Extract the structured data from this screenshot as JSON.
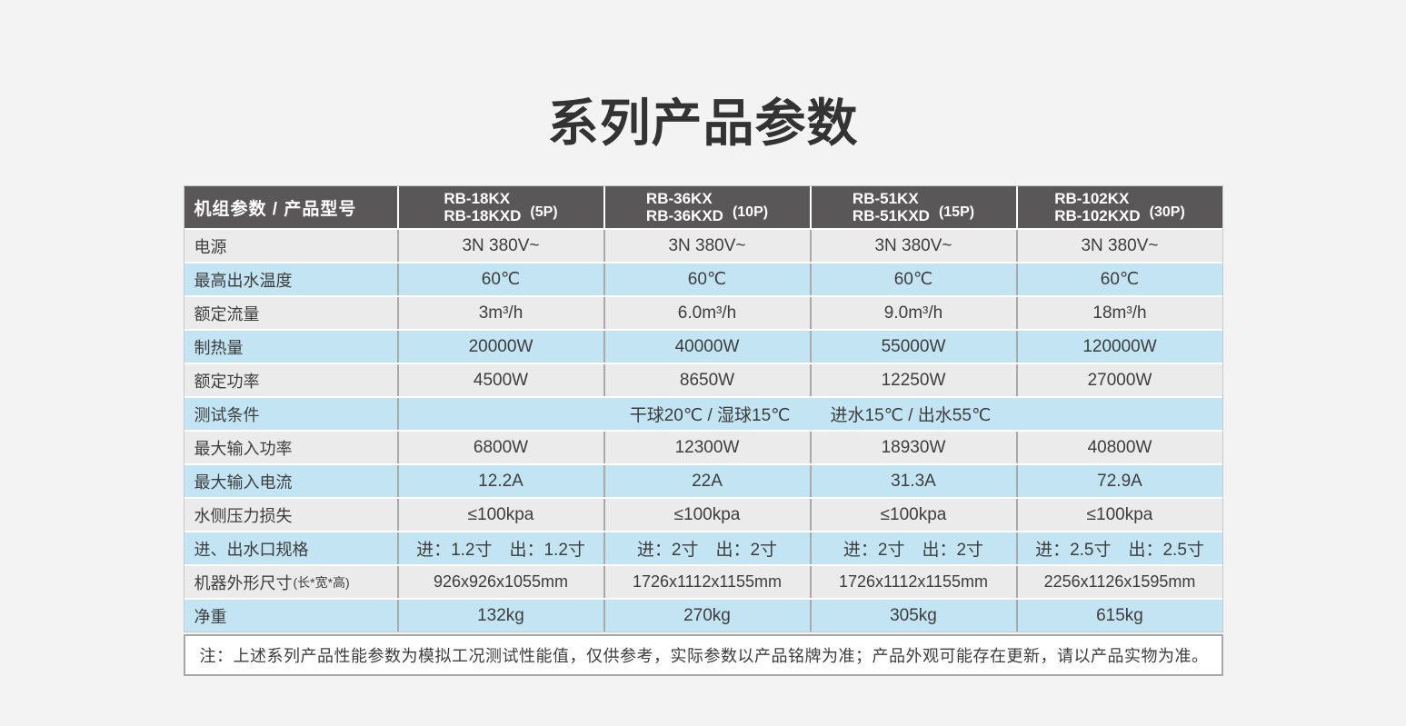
{
  "page": {
    "title": "系列产品参数"
  },
  "colors": {
    "page_bg": "#f3f3f3",
    "header_bg": "#595757",
    "header_text": "#ffffff",
    "row_blue": "#c3e5f3",
    "row_gray": "#ebebeb",
    "divider_gray": "#a9a9a9",
    "text": "#3d3d3d",
    "note_bg": "#ffffff",
    "note_border": "#a8a8a8"
  },
  "table": {
    "corner_label": "机组参数 / 产品型号",
    "models": [
      {
        "line1": "RB-18KX",
        "line2": "RB-18KXD",
        "hp": "(5P)"
      },
      {
        "line1": "RB-36KX",
        "line2": "RB-36KXD",
        "hp": "(10P)"
      },
      {
        "line1": "RB-51KX",
        "line2": "RB-51KXD",
        "hp": "(15P)"
      },
      {
        "line1": "RB-102KX",
        "line2": "RB-102KXD",
        "hp": "(30P)"
      }
    ],
    "rows": [
      {
        "label": "电源",
        "values": [
          "3N 380V~",
          "3N 380V~",
          "3N 380V~",
          "3N 380V~"
        ]
      },
      {
        "label": "最高出水温度",
        "values": [
          "60℃",
          "60℃",
          "60℃",
          "60℃"
        ]
      },
      {
        "label": "额定流量",
        "values": [
          "3m³/h",
          "6.0m³/h",
          "9.0m³/h",
          "18m³/h"
        ]
      },
      {
        "label": "制热量",
        "values": [
          "20000W",
          "40000W",
          "55000W",
          "120000W"
        ]
      },
      {
        "label": "额定功率",
        "values": [
          "4500W",
          "8650W",
          "12250W",
          "27000W"
        ]
      },
      {
        "label": "测试条件",
        "merged_part1": "干球20℃ / 湿球15℃",
        "merged_part2": "进水15℃ / 出水55℃"
      },
      {
        "label": "最大输入功率",
        "values": [
          "6800W",
          "12300W",
          "18930W",
          "40800W"
        ]
      },
      {
        "label": "最大输入电流",
        "values": [
          "12.2A",
          "22A",
          "31.3A",
          "72.9A"
        ]
      },
      {
        "label": "水侧压力损失",
        "values": [
          "≤100kpa",
          "≤100kpa",
          "≤100kpa",
          "≤100kpa"
        ]
      },
      {
        "label": "进、出水口规格",
        "values": [
          "进：1.2寸　出：1.2寸",
          "进：2寸　出：2寸",
          "进：2寸　出：2寸",
          "进：2.5寸　出：2.5寸"
        ]
      },
      {
        "label": "机器外形尺寸",
        "label_suffix": "(长*宽*高)",
        "values": [
          "926x926x1055mm",
          "1726x1112x1155mm",
          "1726x1112x1155mm",
          "2256x1126x1595mm"
        ]
      },
      {
        "label": "净重",
        "values": [
          "132kg",
          "270kg",
          "305kg",
          "615kg"
        ]
      }
    ],
    "note": "注：上述系列产品性能参数为模拟工况测试性能值，仅供参考，实际参数以产品铭牌为准；产品外观可能存在更新，请以产品实物为准。"
  }
}
